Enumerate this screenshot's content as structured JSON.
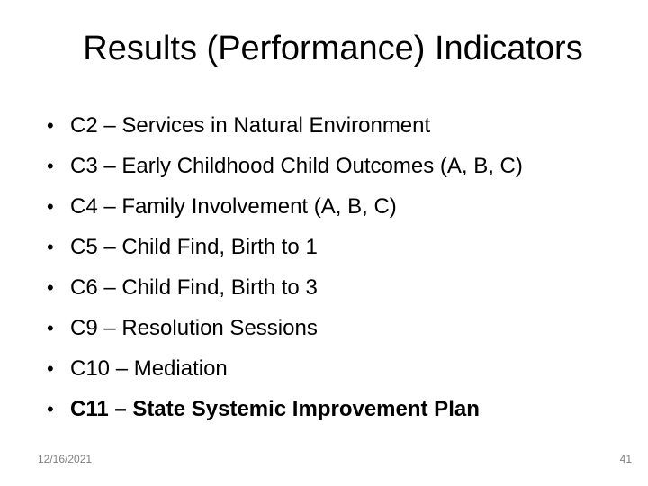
{
  "slide": {
    "title": "Results (Performance) Indicators",
    "bullet_char": "•",
    "bullets": [
      {
        "text": "C2 – Services in Natural Environment",
        "bold": false
      },
      {
        "text": "C3 – Early Childhood Child Outcomes (A, B, C)",
        "bold": false
      },
      {
        "text": "C4 – Family Involvement (A, B, C)",
        "bold": false
      },
      {
        "text": "C5 – Child Find, Birth to 1",
        "bold": false
      },
      {
        "text": "C6 – Child Find, Birth to 3",
        "bold": false
      },
      {
        "text": "C9 – Resolution Sessions",
        "bold": false
      },
      {
        "text": "C10 – Mediation",
        "bold": false
      },
      {
        "text": "C11 – State Systemic Improvement Plan",
        "bold": true
      }
    ],
    "footer": {
      "date": "12/16/2021",
      "slide_number": "41"
    },
    "colors": {
      "background": "#ffffff",
      "text": "#000000",
      "footer_text": "#808080"
    }
  }
}
